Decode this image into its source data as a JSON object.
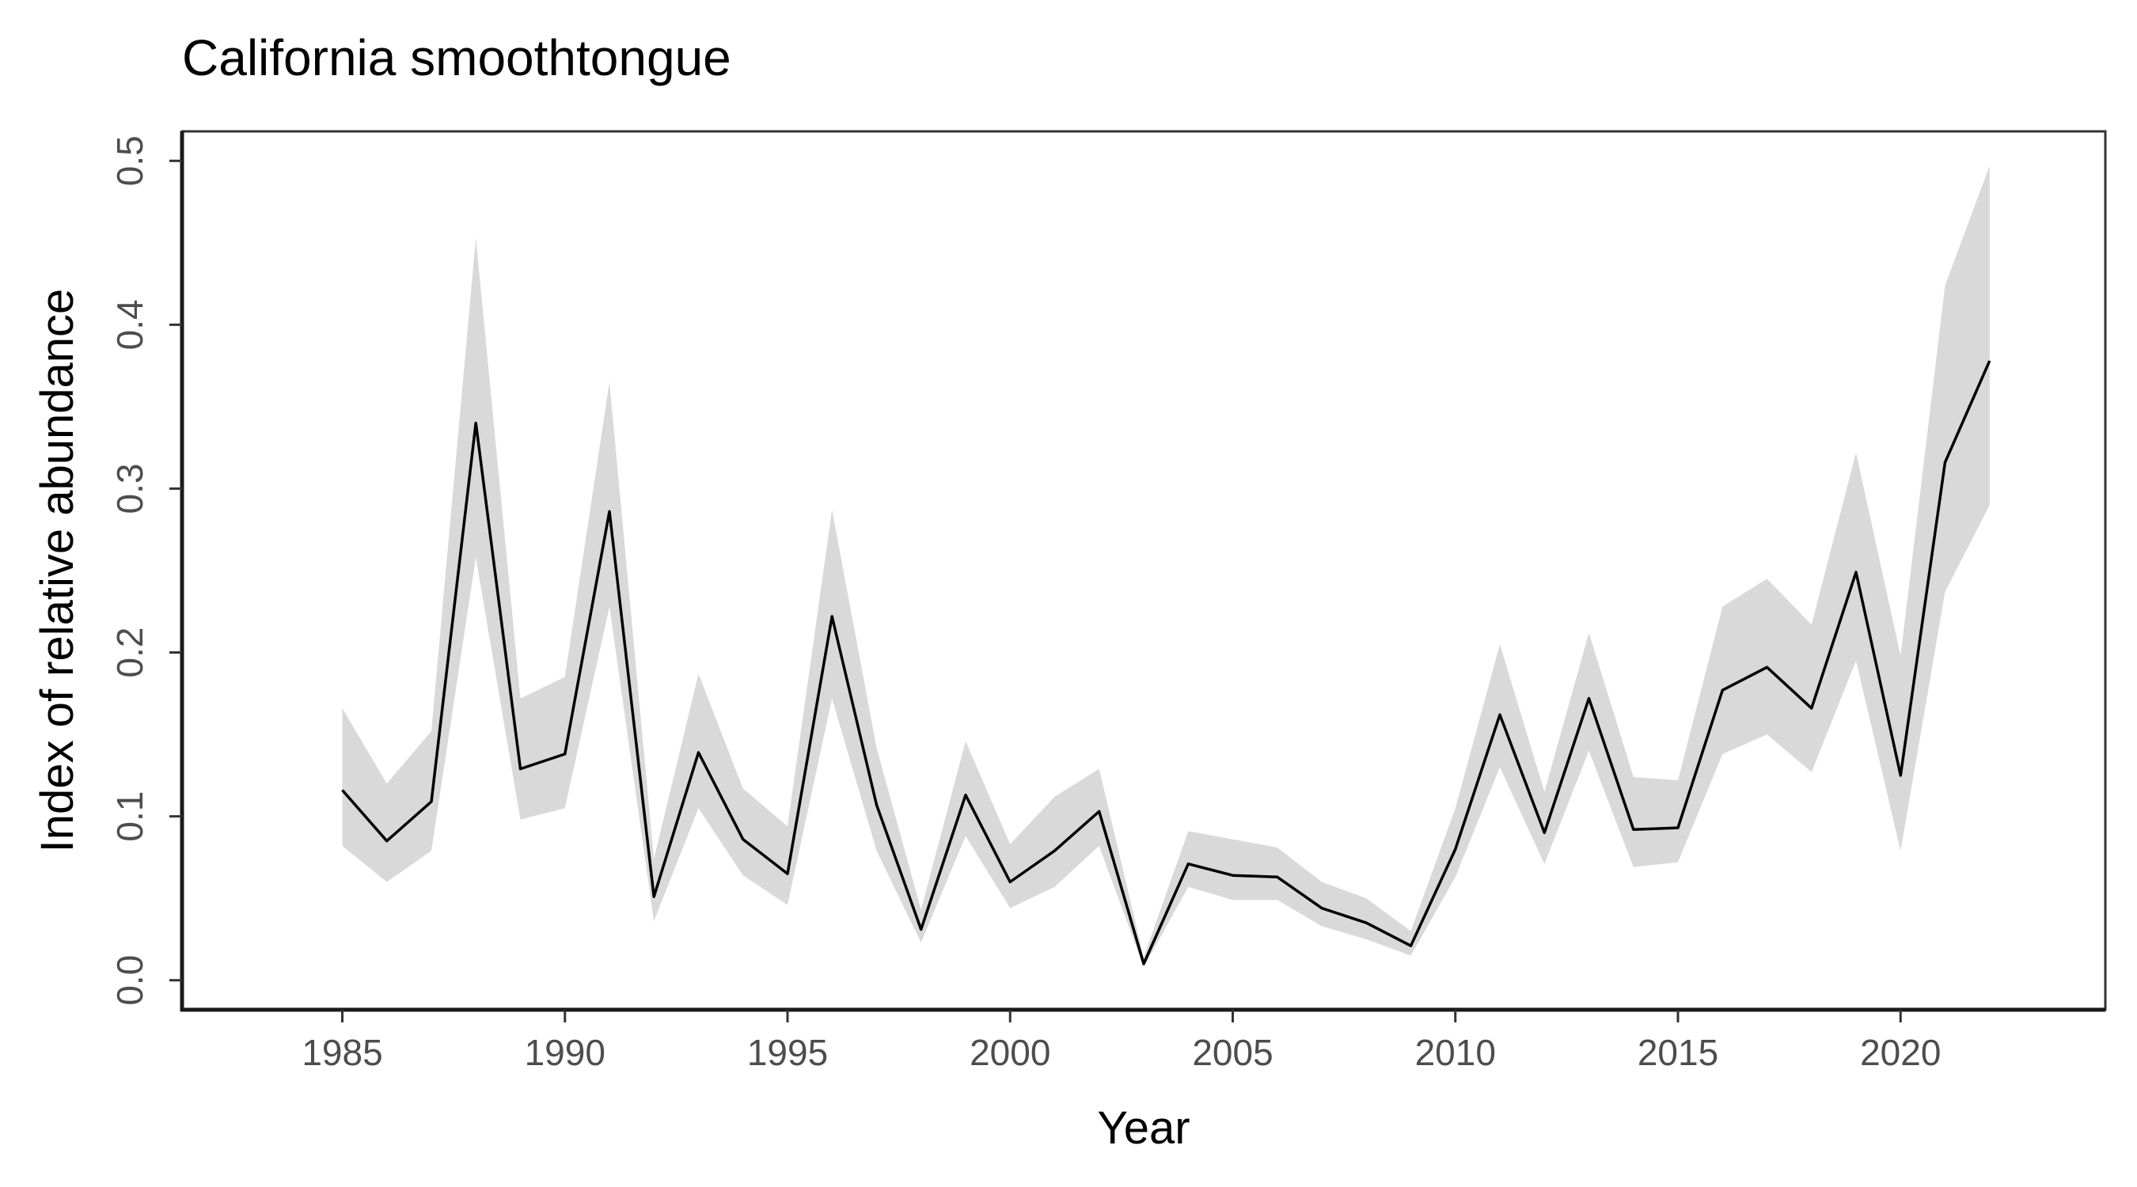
{
  "chart_data": {
    "type": "line",
    "title": "California smoothtongue",
    "xlabel": "Year",
    "ylabel": "Index of relative abundance",
    "xlim": [
      1981.4,
      2024.6
    ],
    "ylim": [
      -0.018,
      0.518
    ],
    "xticks": [
      1985,
      1990,
      1995,
      2000,
      2005,
      2010,
      2015,
      2020
    ],
    "xtick_labels": [
      "1985",
      "1990",
      "1995",
      "2000",
      "2005",
      "2010",
      "2015",
      "2020"
    ],
    "yticks": [
      0.0,
      0.1,
      0.2,
      0.3,
      0.4,
      0.5
    ],
    "ytick_labels": [
      "0.0",
      "0.1",
      "0.2",
      "0.3",
      "0.4",
      "0.5"
    ],
    "grid": false,
    "legend": "none",
    "colors": {
      "line": "#000000",
      "ribbon": "#d9d9d9"
    },
    "x": [
      1985,
      1986,
      1987,
      1988,
      1989,
      1990,
      1991,
      1992,
      1993,
      1994,
      1995,
      1996,
      1997,
      1998,
      1999,
      2000,
      2001,
      2002,
      2003,
      2004,
      2005,
      2006,
      2007,
      2008,
      2009,
      2010,
      2011,
      2012,
      2013,
      2014,
      2015,
      2016,
      2017,
      2018,
      2019,
      2020,
      2021,
      2022
    ],
    "series": [
      {
        "values": [
          0.116,
          0.085,
          0.109,
          0.34,
          0.129,
          0.138,
          0.286,
          0.051,
          0.139,
          0.086,
          0.065,
          0.222,
          0.107,
          0.031,
          0.113,
          0.06,
          0.079,
          0.103,
          0.01,
          0.071,
          0.064,
          0.063,
          0.044,
          0.035,
          0.021,
          0.08,
          0.162,
          0.09,
          0.172,
          0.092,
          0.093,
          0.177,
          0.191,
          0.166,
          0.249,
          0.125,
          0.316,
          0.378
        ],
        "lower": [
          0.082,
          0.06,
          0.079,
          0.258,
          0.098,
          0.105,
          0.228,
          0.036,
          0.105,
          0.064,
          0.046,
          0.172,
          0.079,
          0.023,
          0.088,
          0.044,
          0.057,
          0.082,
          0.008,
          0.057,
          0.049,
          0.049,
          0.033,
          0.025,
          0.015,
          0.063,
          0.13,
          0.071,
          0.14,
          0.069,
          0.072,
          0.138,
          0.15,
          0.127,
          0.195,
          0.079,
          0.237,
          0.29
        ],
        "upper": [
          0.166,
          0.12,
          0.152,
          0.453,
          0.172,
          0.185,
          0.365,
          0.074,
          0.187,
          0.117,
          0.094,
          0.287,
          0.142,
          0.043,
          0.146,
          0.083,
          0.112,
          0.129,
          0.014,
          0.091,
          0.086,
          0.081,
          0.06,
          0.05,
          0.03,
          0.105,
          0.205,
          0.115,
          0.212,
          0.124,
          0.122,
          0.228,
          0.245,
          0.217,
          0.322,
          0.198,
          0.424,
          0.497
        ]
      }
    ]
  }
}
